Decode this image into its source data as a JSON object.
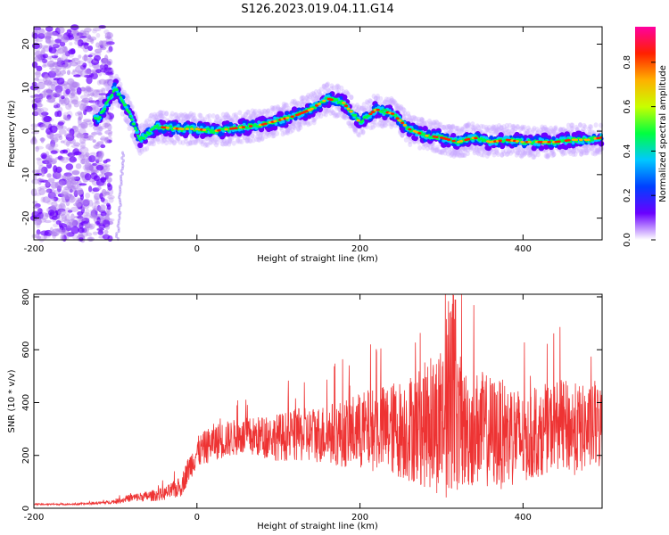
{
  "figure_title": "S126.2023.019.04.11.G14",
  "chart_data": [
    {
      "type": "heatmap",
      "title": "",
      "xlabel": "Height of straight line (km)",
      "ylabel": "Frequency (Hz)",
      "xlim": [
        -200,
        497
      ],
      "ylim": [
        -25,
        24
      ],
      "x_ticks": [
        -200,
        0,
        200,
        400
      ],
      "y_ticks": [
        -20,
        -10,
        0,
        10,
        20
      ],
      "colorbar": {
        "label": "Normalized spectral amplitude",
        "range": [
          0,
          0.96
        ],
        "ticks": [
          0.0,
          0.2,
          0.4,
          0.6,
          0.8
        ],
        "colormap": [
          "#ffffff",
          "#6a00ff",
          "#0040ff",
          "#00c8ff",
          "#00ff40",
          "#c8ff00",
          "#ffb000",
          "#ff2000",
          "#ff00a0"
        ]
      },
      "ridge": {
        "description_free": true,
        "x": [
          -120,
          -100,
          -85,
          -70,
          -50,
          -20,
          0,
          20,
          40,
          60,
          80,
          100,
          120,
          140,
          160,
          180,
          200,
          220,
          240,
          260,
          280,
          300,
          320,
          340,
          360,
          380,
          400,
          420,
          440,
          460,
          480,
          495
        ],
        "y": [
          3,
          10,
          5,
          -2,
          1,
          0.5,
          0.5,
          0,
          0.5,
          1,
          1.5,
          2.5,
          3.5,
          5,
          7.5,
          6.5,
          2,
          5,
          4,
          0.5,
          -1,
          -1.5,
          -2.5,
          -1.5,
          -2.5,
          -2,
          -2.5,
          -2.5,
          -2.5,
          -2,
          -2,
          -1.5
        ]
      }
    },
    {
      "type": "line",
      "title": "",
      "xlabel": "Height of straight line (km)",
      "ylabel": "SNR (10 * v/v)",
      "xlim": [
        -200,
        497
      ],
      "ylim": [
        0,
        810
      ],
      "x_ticks": [
        -200,
        0,
        200,
        400
      ],
      "y_ticks": [
        0,
        200,
        400,
        600,
        800
      ],
      "color": "#ee3333",
      "series": [
        {
          "x": [
            -200,
            -150,
            -120,
            -100,
            -80,
            -60,
            -40,
            -20,
            -10,
            0,
            20,
            50,
            80,
            100,
            120,
            150,
            180,
            200,
            220,
            250,
            270,
            290,
            300,
            310,
            320,
            330,
            350,
            370,
            390,
            400,
            420,
            440,
            460,
            480,
            497
          ],
          "y": [
            15,
            15,
            20,
            25,
            40,
            45,
            55,
            80,
            150,
            210,
            250,
            270,
            270,
            270,
            275,
            280,
            285,
            290,
            300,
            300,
            310,
            320,
            340,
            360,
            330,
            300,
            300,
            280,
            280,
            260,
            270,
            320,
            300,
            300,
            310
          ],
          "spread": [
            3,
            3,
            5,
            8,
            15,
            20,
            25,
            40,
            50,
            60,
            70,
            70,
            80,
            90,
            100,
            110,
            130,
            150,
            160,
            190,
            220,
            260,
            300,
            320,
            270,
            230,
            220,
            210,
            200,
            170,
            150,
            170,
            180,
            160,
            170
          ]
        }
      ]
    }
  ]
}
